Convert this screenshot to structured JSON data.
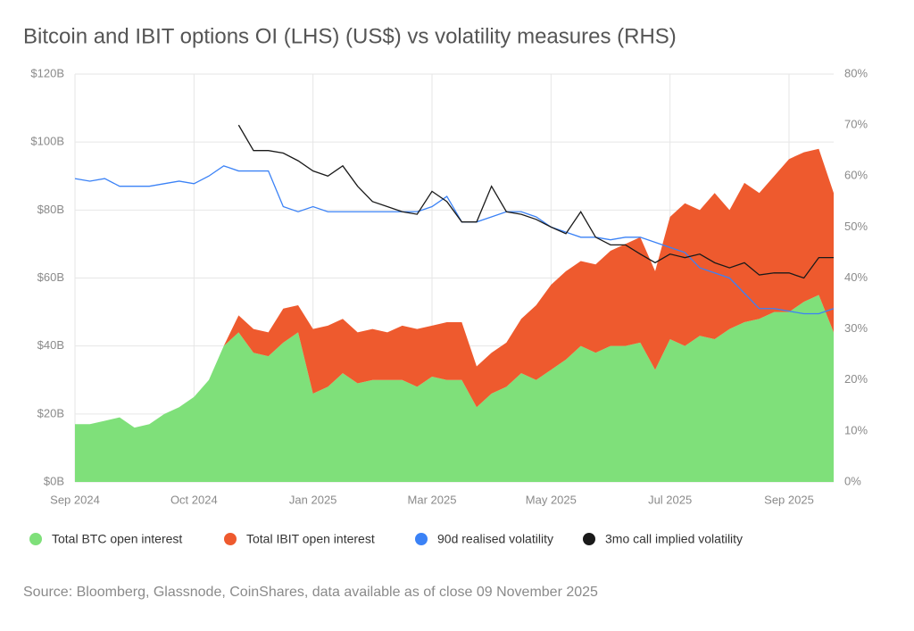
{
  "chart_data": {
    "type": "stacked-area-line",
    "title": "Bitcoin and IBIT options OI (LHS) (US$) vs volatility measures (RHS)",
    "source": "Source: Bloomberg, Glassnode, CoinShares, data available as of close 09 November 2025",
    "categories": [
      "Sep 2024",
      null,
      null,
      null,
      null,
      null,
      null,
      null,
      "Oct 2024",
      null,
      null,
      null,
      null,
      null,
      null,
      null,
      "Jan 2025",
      null,
      null,
      null,
      null,
      null,
      null,
      null,
      "Mar 2025",
      null,
      null,
      null,
      null,
      null,
      null,
      null,
      "May 2025",
      null,
      null,
      null,
      null,
      null,
      null,
      null,
      "Jul 2025",
      null,
      null,
      null,
      null,
      null,
      null,
      null,
      "Sep 2025",
      null,
      null,
      null
    ],
    "series": [
      {
        "name": "Total BTC open interest",
        "color": "#7fe07a",
        "kind": "area",
        "axis": "y",
        "values": [
          17,
          17,
          18,
          19,
          16,
          17,
          20,
          22,
          25,
          30,
          40,
          44,
          38,
          37,
          41,
          44,
          26,
          28,
          32,
          29,
          30,
          30,
          30,
          28,
          31,
          30,
          30,
          22,
          26,
          28,
          32,
          30,
          33,
          36,
          40,
          38,
          40,
          40,
          41,
          33,
          42,
          40,
          43,
          42,
          45,
          47,
          48,
          50,
          50,
          53,
          55,
          44
        ]
      },
      {
        "name": "Total IBIT open interest",
        "color": "#ee5a2e",
        "kind": "area",
        "axis": "y",
        "values": [
          0,
          0,
          0,
          0,
          0,
          0,
          0,
          0,
          0,
          0,
          0,
          5,
          7,
          7,
          10,
          8,
          19,
          18,
          16,
          15,
          15,
          14,
          16,
          17,
          15,
          17,
          17,
          12,
          12,
          13,
          16,
          22,
          25,
          26,
          25,
          26,
          28,
          30,
          31,
          29,
          36,
          42,
          37,
          43,
          35,
          41,
          37,
          40,
          45,
          44,
          43,
          41
        ]
      },
      {
        "name": "90d realised volatility",
        "color": "#3b82f6",
        "kind": "line",
        "axis": "y2",
        "values": [
          59.5,
          59,
          59.5,
          58,
          58,
          58,
          58.5,
          59,
          58.5,
          60,
          62,
          61,
          61,
          61,
          54,
          53,
          54,
          53,
          53,
          53,
          53,
          53,
          53,
          53,
          54,
          56,
          51,
          51,
          52,
          53,
          53,
          52,
          50,
          49,
          48,
          48,
          47.5,
          48,
          48,
          47,
          46,
          45,
          42,
          41,
          40,
          37,
          34,
          34,
          33.5,
          33,
          33,
          34
        ]
      },
      {
        "name": "3mo call implied volatility",
        "color": "#1a1a1a",
        "kind": "line",
        "axis": "y2",
        "values": [
          null,
          null,
          null,
          null,
          null,
          null,
          null,
          null,
          null,
          null,
          null,
          70,
          65,
          65,
          64.5,
          63,
          61,
          60,
          62,
          58,
          55,
          54,
          53,
          52.5,
          57,
          55,
          51,
          51,
          58,
          53,
          52.5,
          51.5,
          50,
          48.7,
          53,
          48,
          46.5,
          46.5,
          44.7,
          43,
          44.7,
          44,
          44.7,
          43,
          42,
          43,
          40.6,
          41,
          41,
          40,
          44,
          44
        ]
      }
    ],
    "ylim": [
      0,
      120
    ],
    "yticks": [
      {
        "value": 0,
        "label": "$0B"
      },
      {
        "value": 20,
        "label": "$20B"
      },
      {
        "value": 40,
        "label": "$40B"
      },
      {
        "value": 60,
        "label": "$60B"
      },
      {
        "value": 80,
        "label": "$80B"
      },
      {
        "value": 100,
        "label": "$100B"
      },
      {
        "value": 120,
        "label": "$120B"
      }
    ],
    "y2lim": [
      0,
      80
    ],
    "y2ticks": [
      {
        "value": 0,
        "label": "0%"
      },
      {
        "value": 10,
        "label": "10%"
      },
      {
        "value": 20,
        "label": "20%"
      },
      {
        "value": 30,
        "label": "30%"
      },
      {
        "value": 40,
        "label": "40%"
      },
      {
        "value": 50,
        "label": "50%"
      },
      {
        "value": 60,
        "label": "60%"
      },
      {
        "value": 70,
        "label": "70%"
      },
      {
        "value": 80,
        "label": "80%"
      }
    ],
    "grid": true,
    "legend": "bottom"
  }
}
